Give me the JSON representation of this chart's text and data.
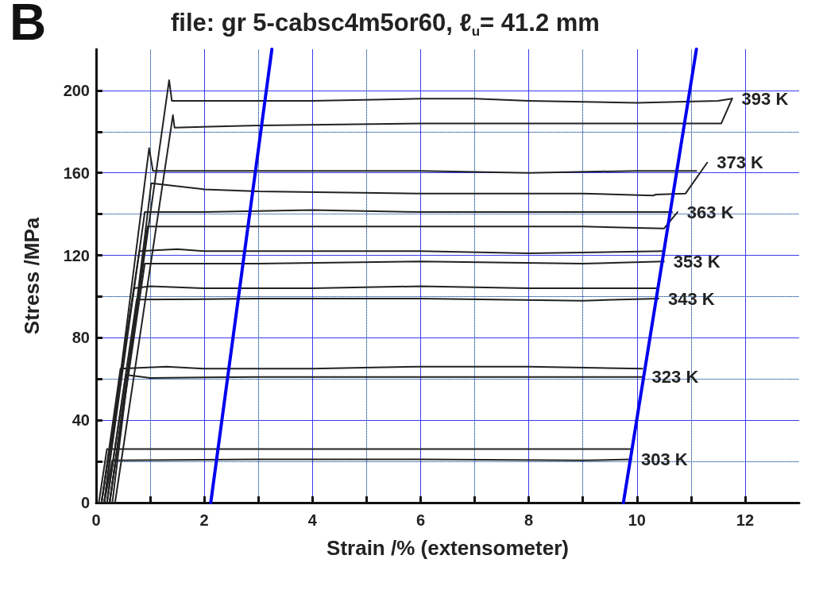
{
  "chart_data": {
    "type": "line",
    "title": "file: gr 5-cabsc4m5or60, ℓ$_{u}$= 41.2 mm",
    "xlabel": "Strain /% (extensometer)",
    "ylabel": "Stress /MPa",
    "annotations": [
      "B"
    ],
    "xlim": [
      0,
      13
    ],
    "xticks": [
      0,
      {
        "value": 1,
        "label": null
      },
      2,
      {
        "value": 3,
        "label": null
      },
      4,
      {
        "value": 5,
        "label": null
      },
      6,
      {
        "value": 7,
        "label": null
      },
      8,
      {
        "value": 9,
        "label": null
      },
      10,
      {
        "value": 11,
        "label": null
      },
      12
    ],
    "ylim": [
      0,
      220
    ],
    "yticks": [
      0,
      {
        "value": 20,
        "label": null
      },
      40,
      {
        "value": 60,
        "label": null
      },
      80,
      {
        "value": 100,
        "label": null
      },
      120,
      {
        "value": 140,
        "label": null
      },
      160,
      {
        "value": 180,
        "label": null
      },
      200
    ],
    "grid": true,
    "marker": "none",
    "line_style": "solid",
    "series": [
      {
        "color": "#222222",
        "x": [
          0.25,
          1.35,
          1.4,
          2,
          4,
          6,
          7,
          8,
          10,
          11.5,
          11.76
        ],
        "values": [
          0,
          205,
          195,
          195,
          195,
          196,
          196,
          195,
          194,
          195,
          196
        ]
      },
      {
        "name": "393 K",
        "color": "#222222",
        "x": [
          0.35,
          1.42,
          1.45,
          3,
          6,
          9,
          11.56,
          11.76
        ],
        "values": [
          0,
          188,
          182,
          183,
          184,
          184,
          184,
          196
        ]
      },
      {
        "color": "#222222",
        "x": [
          0.15,
          0.98,
          1.05,
          2,
          4,
          6,
          8,
          10,
          11.1
        ],
        "values": [
          0,
          172,
          161,
          161,
          161,
          161,
          160,
          161,
          161
        ]
      },
      {
        "name": "373 K",
        "color": "#222222",
        "x": [
          0.3,
          1.02,
          2,
          3,
          6,
          9,
          10.3,
          10.35,
          10.9,
          11.3
        ],
        "values": [
          0,
          155,
          152,
          151,
          150,
          150,
          149,
          149.5,
          150,
          165
        ]
      },
      {
        "color": "#222222",
        "x": [
          0.15,
          0.9,
          2,
          4,
          6,
          8,
          10,
          10.65
        ],
        "values": [
          0,
          141,
          141,
          142,
          141,
          141,
          141,
          141
        ]
      },
      {
        "name": "363 K",
        "color": "#222222",
        "x": [
          0.25,
          0.95,
          3,
          6,
          9,
          10.5,
          10.75
        ],
        "values": [
          0,
          134,
          134,
          134,
          134,
          133,
          141
        ]
      },
      {
        "color": "#222222",
        "x": [
          0.1,
          0.8,
          1.5,
          2,
          4,
          6,
          8,
          10.5
        ],
        "values": [
          0,
          122,
          123,
          122,
          122,
          122,
          121,
          122
        ]
      },
      {
        "name": "353 K",
        "color": "#222222",
        "x": [
          0.25,
          0.9,
          3,
          6,
          9,
          10.5
        ],
        "values": [
          0,
          116,
          116,
          117,
          116,
          117
        ]
      },
      {
        "color": "#222222",
        "x": [
          0.1,
          0.7,
          1,
          2,
          4,
          6,
          8,
          10.4
        ],
        "values": [
          0,
          104,
          105,
          104,
          104,
          105,
          104,
          104
        ]
      },
      {
        "name": "343 K",
        "color": "#222222",
        "x": [
          0.2,
          0.75,
          3,
          6,
          9,
          10.4
        ],
        "values": [
          0,
          98.5,
          99,
          99,
          98,
          99
        ]
      },
      {
        "color": "#222222",
        "x": [
          0.1,
          0.45,
          1.3,
          2,
          4,
          6,
          8,
          10.1
        ],
        "values": [
          0,
          65,
          66,
          65,
          65,
          66,
          66,
          65
        ]
      },
      {
        "name": "323 K",
        "color": "#222222",
        "x": [
          0.2,
          0.55,
          1,
          3,
          6,
          9,
          10.1
        ],
        "values": [
          0,
          62,
          60.5,
          61,
          61,
          61,
          61
        ]
      },
      {
        "color": "#222222",
        "x": [
          0.05,
          0.2,
          2,
          4,
          6,
          8,
          9.9
        ],
        "values": [
          0,
          26,
          26,
          26,
          26,
          26,
          26
        ]
      },
      {
        "name": "303 K",
        "color": "#222222",
        "x": [
          0.15,
          0.3,
          3,
          6,
          9,
          9.9
        ],
        "values": [
          0,
          20.5,
          21,
          21,
          20.5,
          21
        ]
      },
      {
        "color": "#0000ee",
        "x": [
          2.12,
          3.25
        ],
        "values": [
          0,
          220
        ]
      },
      {
        "color": "#0000ee",
        "x": [
          9.75,
          11.1
        ],
        "values": [
          0,
          220
        ]
      }
    ]
  }
}
